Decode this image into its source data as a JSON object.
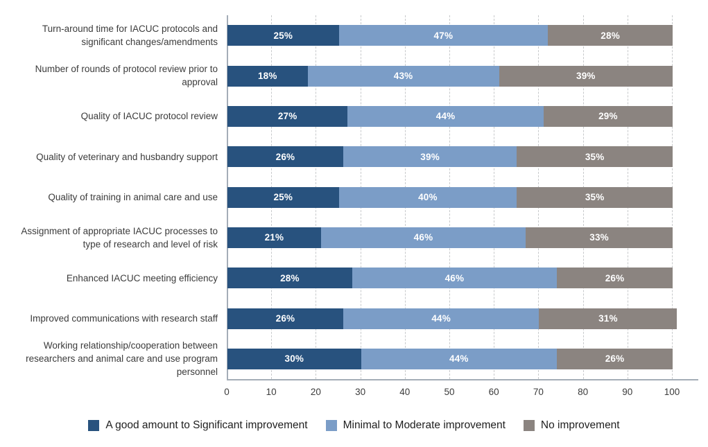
{
  "chart_data": {
    "type": "bar",
    "orientation": "horizontal",
    "stacked": true,
    "title": "",
    "xlabel": "",
    "ylabel": "",
    "categories": [
      "Turn-around time for IACUC protocols and significant changes/amendments",
      "Number of rounds of protocol review prior to approval",
      "Quality of IACUC protocol review",
      "Quality of veterinary and husbandry support",
      "Quality of training in animal care and use",
      "Assignment of appropriate IACUC processes to type of research and level of risk",
      "Enhanced IACUC meeting efficiency",
      "Improved communications with research staff",
      "Working relationship/cooperation between researchers and animal care and use program personnel"
    ],
    "series": [
      {
        "name": "A good amount to Significant improvement",
        "color": "#28527e",
        "values": [
          25,
          18,
          27,
          26,
          25,
          21,
          28,
          26,
          30
        ]
      },
      {
        "name": "Minimal to Moderate improvement",
        "color": "#7b9dc7",
        "values": [
          47,
          43,
          44,
          39,
          40,
          46,
          46,
          44,
          44
        ]
      },
      {
        "name": "No improvement",
        "color": "#8b8480",
        "values": [
          28,
          39,
          29,
          35,
          35,
          33,
          26,
          31,
          26
        ]
      }
    ],
    "value_suffix": "%",
    "x_ticks": [
      0,
      10,
      20,
      30,
      40,
      50,
      60,
      70,
      80,
      90,
      100
    ],
    "xlim": [
      0,
      106
    ],
    "grid": "dashed-vertical",
    "legend_position": "bottom"
  },
  "style": {
    "grid_color": "#c7c9cb",
    "axis_color": "#a4adb7",
    "category_text_color": "#3b3b3b",
    "tick_text_color": "#3b3b3b",
    "bar_label_color": "#ffffff",
    "legend_text_color": "#1e1e1e",
    "background": "#ffffff"
  }
}
